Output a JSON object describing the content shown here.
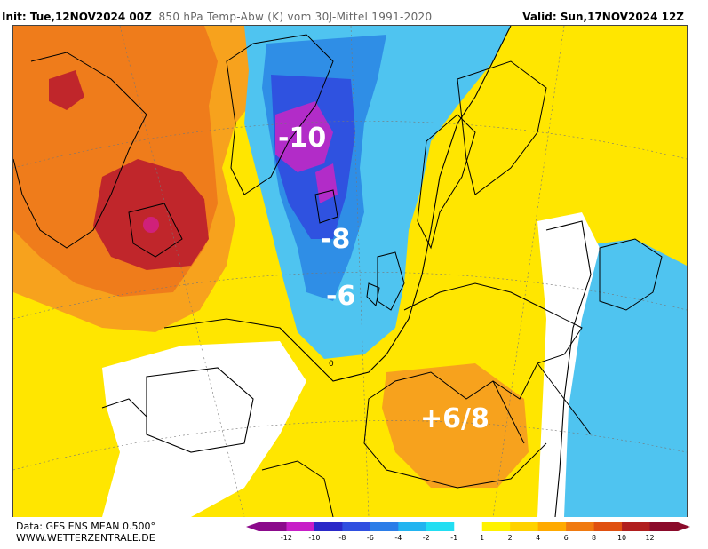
{
  "header": {
    "init_prefix": "Init: ",
    "init_value": "Tue,12NOV2024 00Z",
    "parameter": "850 hPa Temp-Abw (K) vom 30J-Mittel 1991-2020",
    "valid": "Valid: Sun,17NOV2024 12Z"
  },
  "annotations": {
    "greenland_east": "-10",
    "north_atlantic": "-8",
    "west_of_britain": "-6",
    "iberia": "+6/8"
  },
  "isoline_label": "0",
  "footer": {
    "data_source": "Data: GFS ENS MEAN 0.500°",
    "website": "WWW.WETTERZENTRALE.DE"
  },
  "legend": {
    "labels": [
      "-12",
      "-10",
      "-8",
      "-6",
      "-4",
      "-2",
      "-1",
      "1",
      "2",
      "4",
      "6",
      "8",
      "10",
      "12"
    ],
    "colors": [
      "#8b0a8b",
      "#c71ec7",
      "#2a28c8",
      "#2f4fe0",
      "#2b7de8",
      "#22b4f0",
      "#22def2",
      "#ffffff",
      "#fff200",
      "#ffd200",
      "#ffaa00",
      "#f07a10",
      "#e05010",
      "#b01e1e",
      "#8a0a2a"
    ]
  }
}
